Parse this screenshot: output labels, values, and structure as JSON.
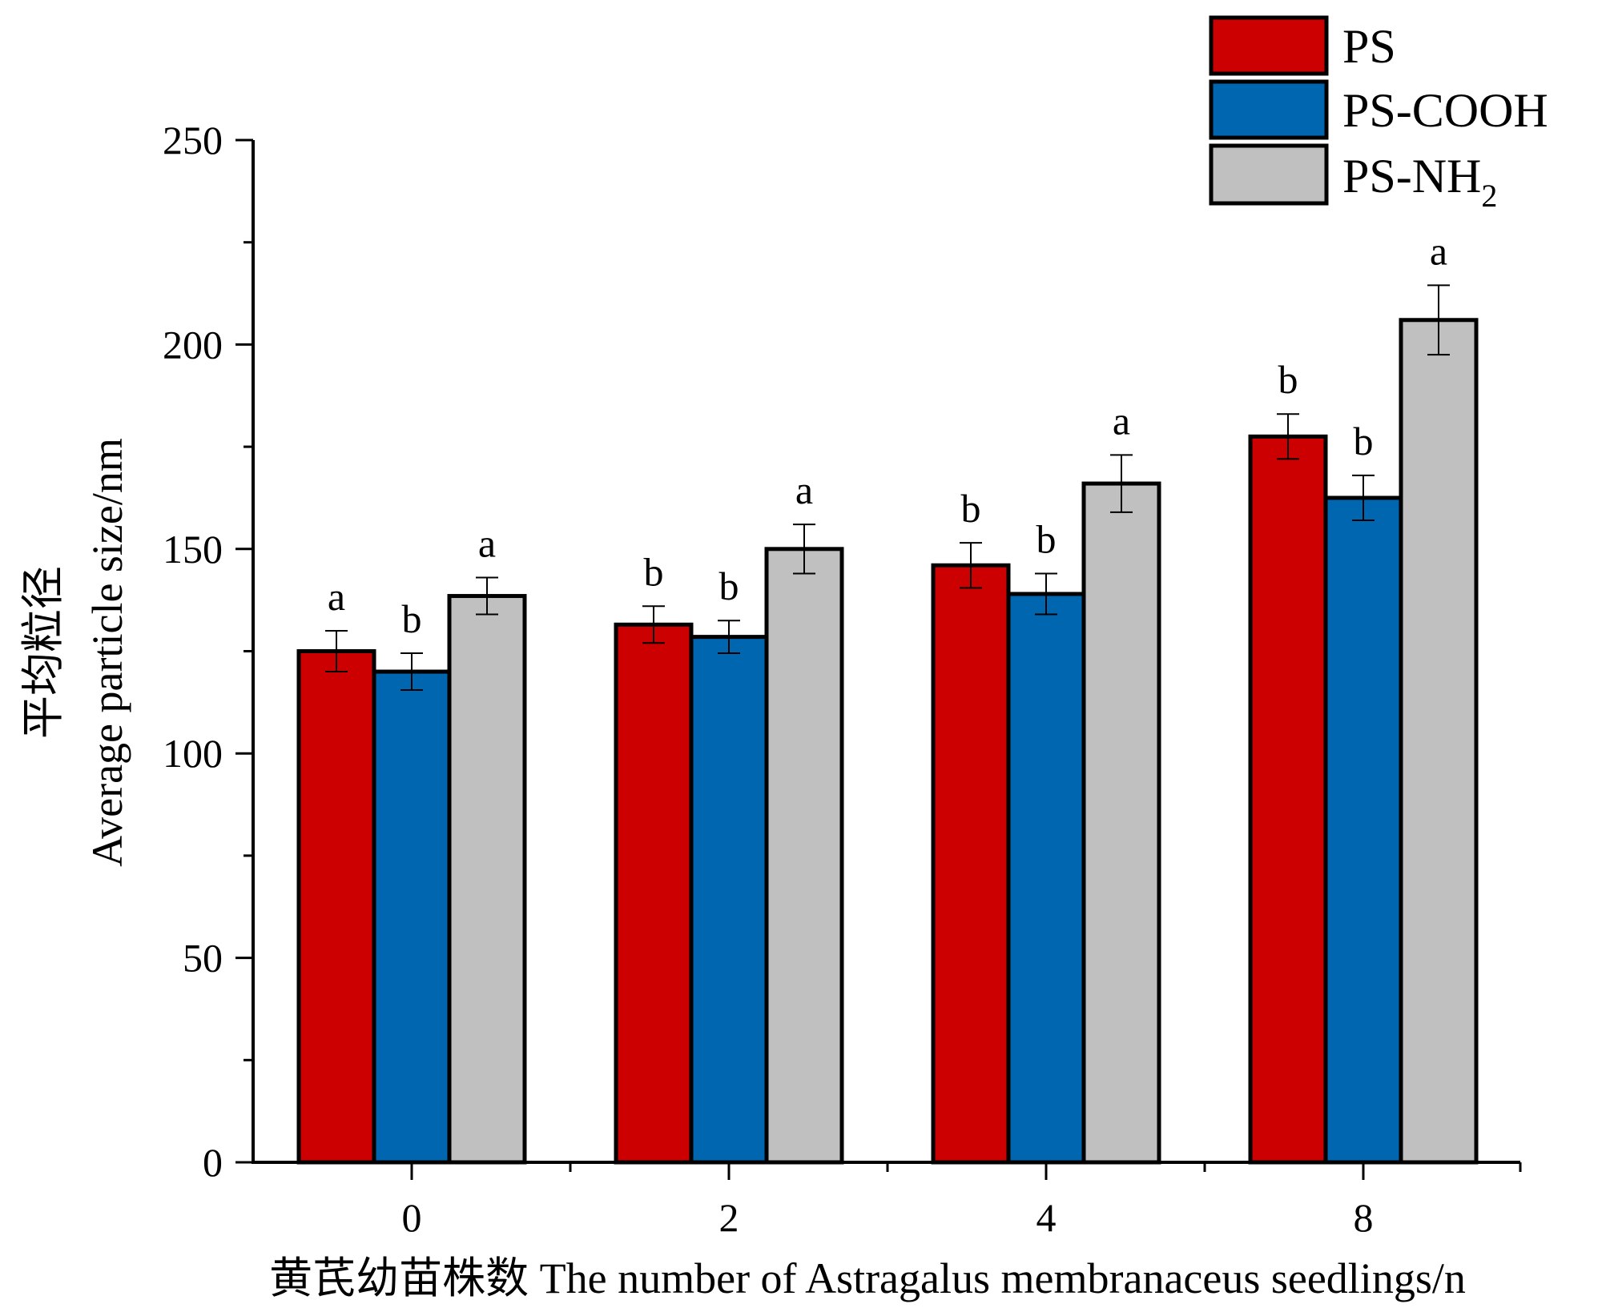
{
  "chart_data": {
    "type": "bar",
    "categories": [
      "0",
      "2",
      "4",
      "8"
    ],
    "series": [
      {
        "name": "PS",
        "color": "#cc0000",
        "values": [
          125,
          131.5,
          146,
          177.5
        ],
        "errors": [
          5,
          4.5,
          5.5,
          5.5
        ],
        "labels": [
          "a",
          "b",
          "b",
          "b"
        ]
      },
      {
        "name": "PS-COOH",
        "color": "#0066b0",
        "values": [
          120,
          128.5,
          139,
          162.5
        ],
        "errors": [
          4.5,
          4,
          5,
          5.5
        ],
        "labels": [
          "b",
          "b",
          "b",
          "b"
        ]
      },
      {
        "name": "PS-NH",
        "name_subscript": "2",
        "color": "#c0c0c0",
        "values": [
          138.5,
          150,
          166,
          206
        ],
        "errors": [
          4.5,
          6,
          7,
          8.5
        ],
        "labels": [
          "a",
          "a",
          "a",
          "a"
        ]
      }
    ],
    "xlabel": "黄芪幼苗株数 The number of Astragalus membranaceus seedlings/n",
    "ylabel_cn": "平均粒径",
    "ylabel": "Average particle size/nm",
    "ylim": [
      0,
      250
    ],
    "yticks": [
      "0",
      "50",
      "100",
      "150",
      "200",
      "250"
    ],
    "grid": false,
    "legend_position": "top-right"
  }
}
